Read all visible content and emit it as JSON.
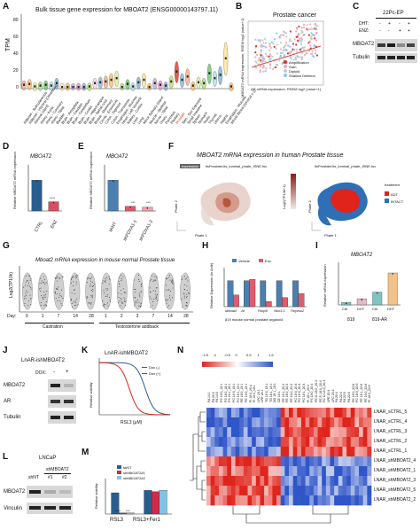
{
  "figure": {
    "panel_letters": [
      "A",
      "B",
      "C",
      "D",
      "E",
      "F",
      "G",
      "H",
      "I",
      "J",
      "K",
      "L",
      "M",
      "N"
    ]
  },
  "panelA": {
    "title": "Bulk tissue gene expression for MBOAT2 (ENSG00000143797.11)",
    "ylabel": "TPM",
    "ytick_labels": [
      "0",
      "20",
      "40",
      "60",
      "80"
    ],
    "tissue_labels": [
      "Adipose - Subcutaneous",
      "Adipose - Visceral (Omentum)",
      "Adrenal Gland",
      "Artery - Aorta",
      "Artery - Coronary",
      "Artery - Tibial",
      "Bladder",
      "Brain - Amygdala",
      "Brain - Caudate",
      "Brain - Cerebellum",
      "Brain - Cortex",
      "Brain - Hippocampus",
      "Brain - Spinal cord",
      "Breast - Mammary",
      "Cervix - Ectocervix",
      "Colon - Sigmoid",
      "Colon - Transverse",
      "Esophagus - Mucosa",
      "Heart - Left Ventricle",
      "Kidney - Cortex",
      "Liver",
      "Lung",
      "Minor Salivary Gland",
      "Muscle - Skeletal",
      "Nerve - Tibial",
      "Ovary",
      "Pancreas",
      "Pituitary",
      "Prostate",
      "Skin - Sun Exposed",
      "Small Intestine",
      "Spleen",
      "Stomach",
      "Testis",
      "Thyroid",
      "Uterus",
      "Vagina",
      "Esophagus - Mucosa",
      "Whole Blood (cervical c-1)"
    ],
    "chart_data": {
      "type": "violin",
      "ylim": [
        0,
        90
      ],
      "values": [
        6,
        7,
        4,
        5,
        6,
        5,
        8,
        3,
        3,
        2,
        3,
        3,
        4,
        8,
        9,
        10,
        12,
        14,
        2,
        7,
        4,
        9,
        12,
        2,
        8,
        6,
        5,
        10,
        22,
        12,
        16,
        5,
        9,
        8,
        20,
        14,
        18,
        38,
        4
      ]
    }
  },
  "panelB": {
    "title": "Prostate cancer",
    "xlabel": "AR mRNA expression, RSEM log2 (value+1)",
    "ylabel": "MBOAT2 mRNA expression, RSEM log2 (value+1)",
    "annotation": "R=0.38",
    "legend": [
      {
        "label": "Amplification",
        "color": "#e4312b"
      },
      {
        "label": "Gain",
        "color": "#f3a6b6"
      },
      {
        "label": "Diploid",
        "color": "#c8c8c8"
      },
      {
        "label": "Shallow Deletion",
        "color": "#8fc6e6"
      }
    ]
  },
  "panelC": {
    "header": "22Pc-EP",
    "row1_label": "DHT:",
    "row1_values": [
      "-",
      "+",
      "-",
      "+"
    ],
    "row2_label": "ENZ:",
    "row2_values": [
      "-",
      "-",
      "+",
      "+"
    ],
    "bands": [
      "MBOAT2",
      "Tubulin"
    ]
  },
  "panelD": {
    "title": "MBOAT2",
    "ylabel": "Relative MBOAT2 mRNA expression",
    "sig": "****",
    "chart_data": {
      "type": "bar",
      "categories": [
        "CTRL",
        "ENZ"
      ],
      "values": [
        1.0,
        0.3
      ],
      "ylim": [
        0,
        1.5
      ],
      "colors": [
        "#2a5d8f",
        "#d84f5f"
      ]
    }
  },
  "panelE": {
    "title": "MBOAT2",
    "ylabel": "Relative MBOAT2 mRNA expression",
    "sigs": [
      "***",
      "***"
    ],
    "chart_data": {
      "type": "bar",
      "categories": [
        "shNT",
        "shFOXA1-1",
        "shFOXA1-2"
      ],
      "values": [
        1.0,
        0.15,
        0.12
      ],
      "ylim": [
        0,
        1.5
      ],
      "colors": [
        "#4a7fb0",
        "#e05b6b",
        "#f0a0b0"
      ]
    }
  },
  "panelF": {
    "title": "MBOAT2 mRNA expression in human Prostate tissue",
    "left_tag": "expression",
    "left_caption": "ltsProstate1ts_luminal_phate_tSNE.tsv",
    "right_caption": "ltsProstate1ts_luminal_phate_tSNE.tsv",
    "colorbar_label": "Log2(TP10k+1)",
    "axis_x": "Phate 1",
    "axis_y": "Phate 2",
    "legend_title": "treatment",
    "legend": [
      {
        "label": "ADT",
        "color": "#e0241c"
      },
      {
        "label": "INTACT",
        "color": "#2f6fb6"
      }
    ]
  },
  "panelG": {
    "title": "Mboat2 mRNA expression in mouse normal Prostate tissue",
    "ylabel": "Log2(TP10k)",
    "day_label": "Day:",
    "castration_days": [
      "0",
      "1",
      "7",
      "14",
      "28"
    ],
    "addback_days": [
      "1",
      "2",
      "3",
      "7",
      "14",
      "28"
    ],
    "group1": "Castration",
    "group2": "Testosterone addback"
  },
  "panelH": {
    "ylabel": "Relative Expression (to Actb)",
    "xlabel": "819 mouse normal prostate organoid",
    "legend": [
      {
        "label": "Vehicle",
        "color": "#4a7fb0"
      },
      {
        "label": "Enz",
        "color": "#e05b6b"
      }
    ],
    "sigs": [
      "**",
      "*",
      "**",
      "***"
    ],
    "chart_data": {
      "type": "bar",
      "categories": [
        "Mboat2",
        "Ar",
        "Fkbp5",
        "Nkx3.1",
        "Tmprss2"
      ],
      "series": [
        {
          "name": "Vehicle",
          "values": [
            1.0,
            1.0,
            1.0,
            1.0,
            1.0
          ]
        },
        {
          "name": "Enz",
          "values": [
            0.45,
            1.05,
            0.2,
            0.35,
            0.5
          ]
        }
      ],
      "ylim": [
        0,
        1.5
      ]
    }
  },
  "panelI": {
    "title": "MBOAT2",
    "ylabel": "Relative mRNA expression",
    "groups": [
      "819",
      "819-AR"
    ],
    "sigs": [
      "****",
      "*",
      "**",
      "****"
    ],
    "chart_data": {
      "type": "bar",
      "categories": [
        "Ctrl",
        "DHT",
        "Ctrl",
        "DHT"
      ],
      "values": [
        1.0,
        2.6,
        5.4,
        13.5
      ],
      "ylim": [
        0,
        18
      ],
      "colors": [
        "#7fc4c4",
        "#e7b8c8",
        "#7fc4c4",
        "#f2c28a"
      ]
    }
  },
  "panelJ": {
    "title": "LnAR-ishMBOAT2",
    "dox_label": "DOX:",
    "dox_values": [
      "-",
      "+"
    ],
    "bands": [
      "MBOAT2",
      "AR",
      "Tubulin"
    ]
  },
  "panelK": {
    "title": "LnAR-ishMBOAT2",
    "ylabel": "Relative viability",
    "xlabel": "RSL3 (μM)",
    "legend": [
      {
        "label": "Dox (-)",
        "color": "#2a5d8f"
      },
      {
        "label": "Dox (+)",
        "color": "#e0241c"
      }
    ]
  },
  "panelL": {
    "title": "LNCaP",
    "group": "shMBOAT2",
    "lanes": [
      "shNT",
      "#1",
      "#2"
    ],
    "bands": [
      "MBOAT2",
      "Vinculin"
    ]
  },
  "panelM": {
    "ylabel": "Relative viability",
    "legend": [
      {
        "label": "shNT",
        "color": "#2a5d8f"
      },
      {
        "label": "shMBOAT2#1",
        "color": "#d1294a"
      },
      {
        "label": "shMBOAT2#2",
        "color": "#7fc4e6"
      }
    ],
    "sigs": [
      "****",
      "***"
    ],
    "chart_data": {
      "type": "bar",
      "categories": [
        "RSL3",
        "RSL3+Fer1"
      ],
      "series": [
        {
          "name": "shNT",
          "values": [
            0.9,
            1.0
          ]
        },
        {
          "name": "shMBOAT2#1",
          "values": [
            0.05,
            0.95
          ]
        },
        {
          "name": "shMBOAT2#2",
          "values": [
            0.05,
            1.0
          ]
        }
      ],
      "ylim": [
        0,
        1.5
      ]
    }
  },
  "panelN": {
    "scale_labels": [
      "-1.5",
      "-1",
      "-0.5",
      "0",
      "0.5",
      "1",
      "1.5"
    ],
    "row_labels": [
      "LNAR_sCTRL_5",
      "LNAR_sCTRL_4",
      "LNAR_sCTRL_3",
      "LNAR_sCTRL_2",
      "LNAR_sCTRL_1",
      "LNAR_shMBOAT2_4",
      "LNAR_shMBOAT2_1",
      "LNAR_shMBOAT2_3",
      "LNAR_shMBOAT2_5",
      "LNAR_shMBOAT2_2"
    ],
    "col_labels": [
      "FA 14:1",
      "FA 20:0",
      "FA 14:0",
      "PS 16:0_18:1",
      "PS 18:0_18:1",
      "PS 16:1_18:1",
      "PC 16:0_18:1",
      "PC 18:1_18:1",
      "PE 18:0_18:1",
      "PE 16:0_18:1",
      "PI 18:0_20:4",
      "PI 16:0_18:1",
      "LPC 18:1",
      "LPE 18:1",
      "TG 16:0_18:1",
      "TG 18:1_18:1",
      "DG 18:1_18:1",
      "CE 18:1",
      "PE 18:1_20:4",
      "PE 18:0_20:4",
      "PE 16:0_20:4",
      "PC 18:0_20:4",
      "PC 16:0_20:4",
      "PC 18:1_20:4",
      "PI 18:1_20:4",
      "PS 18:0_20:4",
      "PE O-18:0_20:4",
      "PE P-18:0_20:4",
      "PC O-16:0_20:4",
      "LPE 20:4",
      "LPC 20:4",
      "FA 20:4",
      "FA 22:4",
      "FA 22:5",
      "FA 22:6",
      "PE 18:0_22:6",
      "PC 18:0_22:6",
      "PE 18:1_22:6",
      "PE 16:0_22:6",
      "PI 18:0_22:6"
    ]
  }
}
